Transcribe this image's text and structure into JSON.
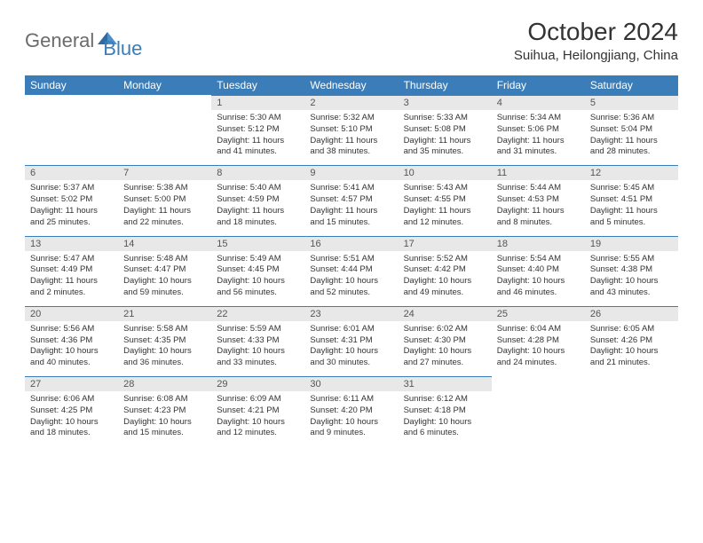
{
  "logo": {
    "general": "General",
    "blue": "Blue"
  },
  "title": "October 2024",
  "location": "Suihua, Heilongjiang, China",
  "colors": {
    "header_bg": "#3a7db8",
    "header_fg": "#ffffff",
    "daynum_bg": "#e8e8e8",
    "daynum_fg": "#555555",
    "border": "#3a7db8",
    "body_text": "#333333",
    "page_bg": "#ffffff"
  },
  "day_names": [
    "Sunday",
    "Monday",
    "Tuesday",
    "Wednesday",
    "Thursday",
    "Friday",
    "Saturday"
  ],
  "weeks": [
    [
      null,
      null,
      {
        "n": "1",
        "sr": "5:30 AM",
        "ss": "5:12 PM",
        "dl": "11 hours and 41 minutes."
      },
      {
        "n": "2",
        "sr": "5:32 AM",
        "ss": "5:10 PM",
        "dl": "11 hours and 38 minutes."
      },
      {
        "n": "3",
        "sr": "5:33 AM",
        "ss": "5:08 PM",
        "dl": "11 hours and 35 minutes."
      },
      {
        "n": "4",
        "sr": "5:34 AM",
        "ss": "5:06 PM",
        "dl": "11 hours and 31 minutes."
      },
      {
        "n": "5",
        "sr": "5:36 AM",
        "ss": "5:04 PM",
        "dl": "11 hours and 28 minutes."
      }
    ],
    [
      {
        "n": "6",
        "sr": "5:37 AM",
        "ss": "5:02 PM",
        "dl": "11 hours and 25 minutes."
      },
      {
        "n": "7",
        "sr": "5:38 AM",
        "ss": "5:00 PM",
        "dl": "11 hours and 22 minutes."
      },
      {
        "n": "8",
        "sr": "5:40 AM",
        "ss": "4:59 PM",
        "dl": "11 hours and 18 minutes."
      },
      {
        "n": "9",
        "sr": "5:41 AM",
        "ss": "4:57 PM",
        "dl": "11 hours and 15 minutes."
      },
      {
        "n": "10",
        "sr": "5:43 AM",
        "ss": "4:55 PM",
        "dl": "11 hours and 12 minutes."
      },
      {
        "n": "11",
        "sr": "5:44 AM",
        "ss": "4:53 PM",
        "dl": "11 hours and 8 minutes."
      },
      {
        "n": "12",
        "sr": "5:45 AM",
        "ss": "4:51 PM",
        "dl": "11 hours and 5 minutes."
      }
    ],
    [
      {
        "n": "13",
        "sr": "5:47 AM",
        "ss": "4:49 PM",
        "dl": "11 hours and 2 minutes."
      },
      {
        "n": "14",
        "sr": "5:48 AM",
        "ss": "4:47 PM",
        "dl": "10 hours and 59 minutes."
      },
      {
        "n": "15",
        "sr": "5:49 AM",
        "ss": "4:45 PM",
        "dl": "10 hours and 56 minutes."
      },
      {
        "n": "16",
        "sr": "5:51 AM",
        "ss": "4:44 PM",
        "dl": "10 hours and 52 minutes."
      },
      {
        "n": "17",
        "sr": "5:52 AM",
        "ss": "4:42 PM",
        "dl": "10 hours and 49 minutes."
      },
      {
        "n": "18",
        "sr": "5:54 AM",
        "ss": "4:40 PM",
        "dl": "10 hours and 46 minutes."
      },
      {
        "n": "19",
        "sr": "5:55 AM",
        "ss": "4:38 PM",
        "dl": "10 hours and 43 minutes."
      }
    ],
    [
      {
        "n": "20",
        "sr": "5:56 AM",
        "ss": "4:36 PM",
        "dl": "10 hours and 40 minutes."
      },
      {
        "n": "21",
        "sr": "5:58 AM",
        "ss": "4:35 PM",
        "dl": "10 hours and 36 minutes."
      },
      {
        "n": "22",
        "sr": "5:59 AM",
        "ss": "4:33 PM",
        "dl": "10 hours and 33 minutes."
      },
      {
        "n": "23",
        "sr": "6:01 AM",
        "ss": "4:31 PM",
        "dl": "10 hours and 30 minutes."
      },
      {
        "n": "24",
        "sr": "6:02 AM",
        "ss": "4:30 PM",
        "dl": "10 hours and 27 minutes."
      },
      {
        "n": "25",
        "sr": "6:04 AM",
        "ss": "4:28 PM",
        "dl": "10 hours and 24 minutes."
      },
      {
        "n": "26",
        "sr": "6:05 AM",
        "ss": "4:26 PM",
        "dl": "10 hours and 21 minutes."
      }
    ],
    [
      {
        "n": "27",
        "sr": "6:06 AM",
        "ss": "4:25 PM",
        "dl": "10 hours and 18 minutes."
      },
      {
        "n": "28",
        "sr": "6:08 AM",
        "ss": "4:23 PM",
        "dl": "10 hours and 15 minutes."
      },
      {
        "n": "29",
        "sr": "6:09 AM",
        "ss": "4:21 PM",
        "dl": "10 hours and 12 minutes."
      },
      {
        "n": "30",
        "sr": "6:11 AM",
        "ss": "4:20 PM",
        "dl": "10 hours and 9 minutes."
      },
      {
        "n": "31",
        "sr": "6:12 AM",
        "ss": "4:18 PM",
        "dl": "10 hours and 6 minutes."
      },
      null,
      null
    ]
  ],
  "labels": {
    "sunrise": "Sunrise:",
    "sunset": "Sunset:",
    "daylight": "Daylight:"
  }
}
